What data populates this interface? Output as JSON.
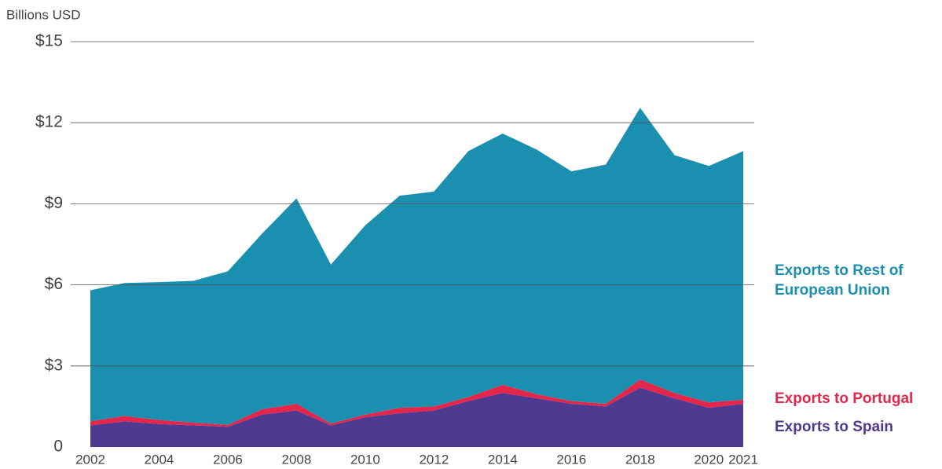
{
  "chart_data": {
    "type": "area",
    "stacked": true,
    "ylabel": "Billions USD",
    "x": [
      2002,
      2003,
      2004,
      2005,
      2006,
      2007,
      2008,
      2009,
      2010,
      2011,
      2012,
      2013,
      2014,
      2015,
      2016,
      2017,
      2018,
      2019,
      2020,
      2021
    ],
    "series": [
      {
        "name": "Exports to Spain",
        "color": "#4f3a91",
        "values": [
          0.8,
          0.95,
          0.85,
          0.8,
          0.75,
          1.2,
          1.35,
          0.8,
          1.1,
          1.25,
          1.35,
          1.7,
          2.0,
          1.8,
          1.6,
          1.5,
          2.2,
          1.8,
          1.45,
          1.6
        ]
      },
      {
        "name": "Exports to Portugal",
        "color": "#e5264a",
        "values": [
          0.15,
          0.2,
          0.15,
          0.1,
          0.07,
          0.2,
          0.25,
          0.07,
          0.1,
          0.2,
          0.15,
          0.15,
          0.3,
          0.15,
          0.1,
          0.1,
          0.3,
          0.2,
          0.2,
          0.15
        ]
      },
      {
        "name": "Exports to Rest of European Union",
        "color": "#1a8fb0",
        "values": [
          4.85,
          4.92,
          5.1,
          5.25,
          5.68,
          6.5,
          7.6,
          5.88,
          7.0,
          7.85,
          7.95,
          9.1,
          9.3,
          9.05,
          8.5,
          8.85,
          10.05,
          8.8,
          8.75,
          9.2
        ]
      }
    ],
    "xlim": [
      2002,
      2021
    ],
    "xticks": [
      2002,
      2004,
      2006,
      2008,
      2010,
      2012,
      2014,
      2016,
      2018,
      2020,
      2021
    ],
    "ylim": [
      0,
      15
    ],
    "yticks": [
      0,
      {
        "value": 3,
        "label": "$3"
      },
      {
        "value": 6,
        "label": "$6"
      },
      {
        "value": 9,
        "label": "$9"
      },
      {
        "value": 12,
        "label": "$12"
      },
      {
        "value": 15,
        "label": "$15"
      }
    ],
    "grid": true
  }
}
